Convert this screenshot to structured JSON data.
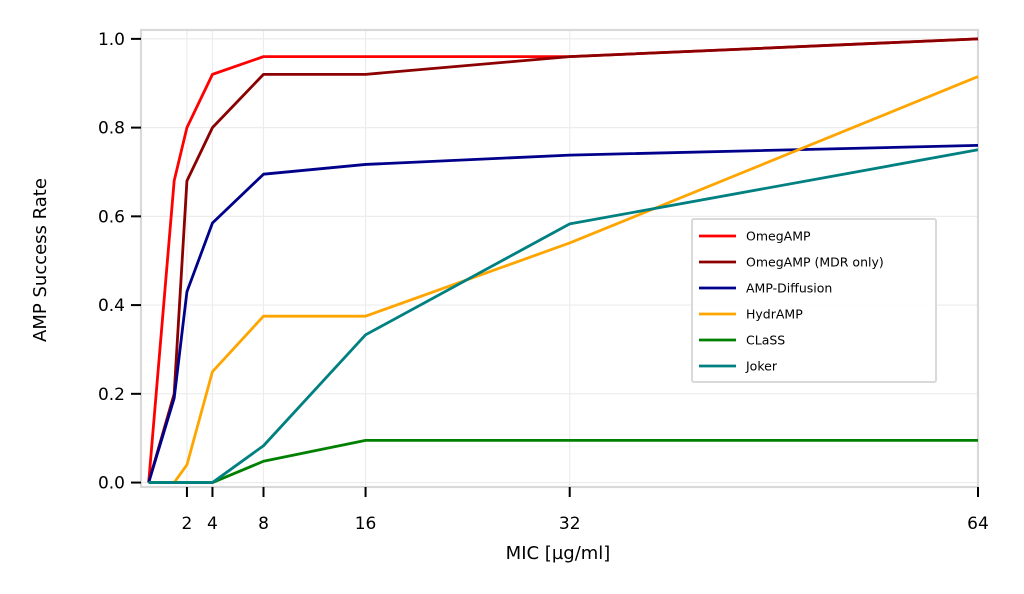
{
  "chart_data": {
    "type": "line",
    "xlabel": "MIC [µg/ml]",
    "ylabel": "AMP Success Rate",
    "xlim": [
      -1.6,
      64
    ],
    "ylim": [
      -0.01,
      1.02
    ],
    "xticks": [
      2,
      4,
      8,
      16,
      32,
      64
    ],
    "xtick_labels": [
      "2",
      "4",
      "8",
      "16",
      "32",
      "64"
    ],
    "yticks": [
      0.0,
      0.2,
      0.4,
      0.6,
      0.8,
      1.0
    ],
    "ytick_labels": [
      "0.0",
      "0.2",
      "0.4",
      "0.6",
      "0.8",
      "1.0"
    ],
    "grid": true,
    "legend_position": "center-right",
    "series": [
      {
        "name": "OmegAMP",
        "color": "#ff0000",
        "x": [
          -1,
          1,
          2,
          4,
          8,
          16,
          32,
          64
        ],
        "y": [
          0.0,
          0.68,
          0.8,
          0.92,
          0.96,
          0.96,
          0.96,
          1.0
        ]
      },
      {
        "name": "OmegAMP (MDR only)",
        "color": "#8b0000",
        "x": [
          -1,
          1,
          2,
          4,
          8,
          16,
          32,
          64
        ],
        "y": [
          0.0,
          0.2,
          0.68,
          0.8,
          0.92,
          0.92,
          0.96,
          1.0
        ]
      },
      {
        "name": "AMP-Diffusion",
        "color": "#00008b",
        "x": [
          -1,
          1,
          2,
          4,
          8,
          16,
          32,
          64
        ],
        "y": [
          0.0,
          0.19,
          0.43,
          0.585,
          0.695,
          0.717,
          0.738,
          0.76
        ]
      },
      {
        "name": "HydrAMP",
        "color": "#ffa500",
        "x": [
          -1,
          1,
          2,
          4,
          8,
          16,
          32,
          64
        ],
        "y": [
          0.0,
          0.0,
          0.04,
          0.25,
          0.375,
          0.375,
          0.54,
          0.915
        ]
      },
      {
        "name": "CLaSS",
        "color": "#008000",
        "x": [
          -1,
          1,
          2,
          4,
          8,
          16,
          32,
          64
        ],
        "y": [
          0.0,
          0.0,
          0.0,
          0.0,
          0.048,
          0.095,
          0.095,
          0.095
        ]
      },
      {
        "name": "Joker",
        "color": "#008080",
        "x": [
          -1,
          1,
          2,
          4,
          8,
          16,
          32,
          64
        ],
        "y": [
          0.0,
          0.0,
          0.0,
          0.0,
          0.083,
          0.333,
          0.583,
          0.75
        ]
      }
    ]
  }
}
